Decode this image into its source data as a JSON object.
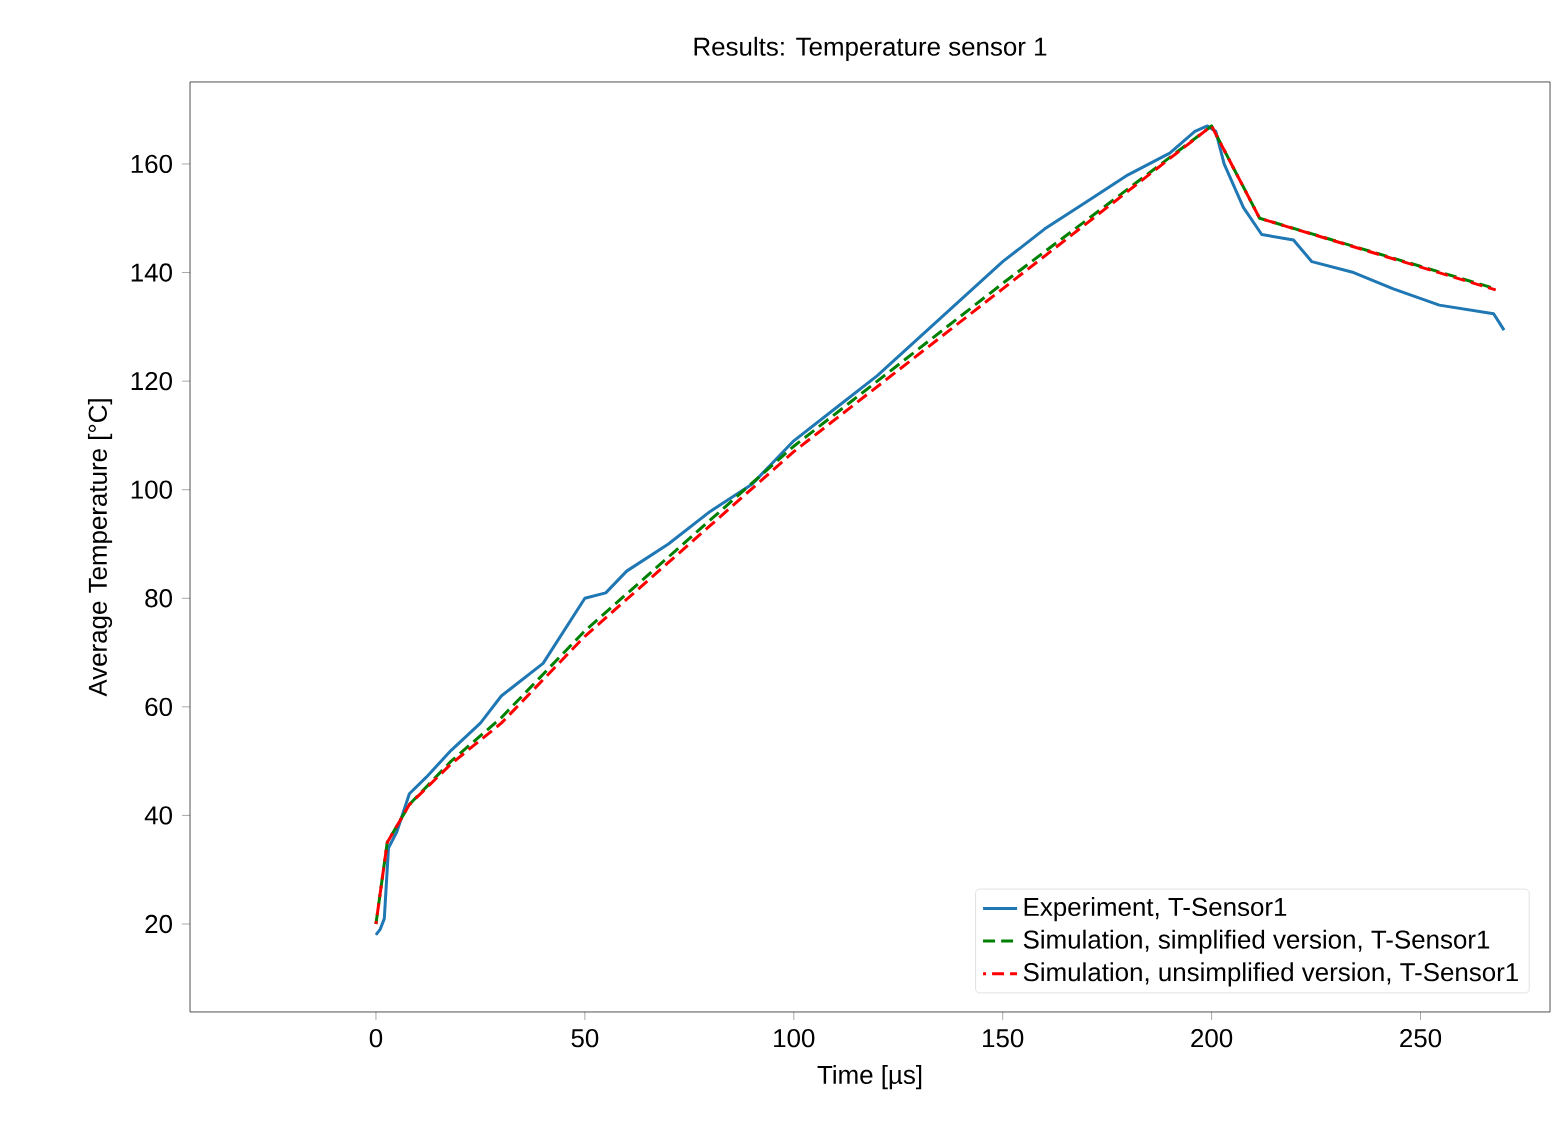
{
  "chart_data": {
    "type": "line",
    "title": "Results: Temperature sensor 1",
    "xlabel": "Time [µs]",
    "ylabel": "Average Temperature [°C]",
    "xlim": [
      -44.5,
      281
    ],
    "ylim": [
      3.8,
      175.1
    ],
    "xticks": [
      0,
      50,
      100,
      150,
      200,
      250
    ],
    "yticks": [
      20,
      40,
      60,
      80,
      100,
      120,
      140,
      160
    ],
    "grid": false,
    "legend": "bottom right",
    "series": [
      {
        "name": "Experiment, T-Sensor1",
        "color": "#1f77b4",
        "line_style": "solid",
        "x": [
          0,
          1,
          2,
          3,
          5,
          8,
          12,
          18,
          25,
          30,
          40,
          50,
          55,
          60,
          70,
          80,
          90,
          100,
          110,
          120,
          130,
          140,
          150,
          160,
          170,
          180,
          190,
          196,
          199,
          201,
          203,
          207.6,
          212,
          219.6,
          224,
          234,
          243.5,
          254.5,
          267.5,
          270
        ],
        "values": [
          18,
          19,
          21,
          34,
          37,
          44,
          47,
          52,
          57,
          62,
          68,
          80,
          81,
          85,
          90,
          96,
          101,
          109,
          115,
          121,
          128,
          135,
          142,
          148,
          153,
          158,
          162,
          166,
          167,
          166,
          160,
          152,
          147,
          146,
          142,
          140,
          137,
          134,
          132.4,
          129.4
        ]
      },
      {
        "name": "Simulation, simplified version, T-Sensor1",
        "color": "#008000",
        "line_style": "dashed",
        "x": [
          0,
          2.7,
          8,
          18,
          30,
          50,
          100,
          150,
          200,
          211.5,
          268
        ],
        "values": [
          20,
          35,
          42,
          50,
          58,
          74,
          108,
          138,
          167,
          150,
          137
        ]
      },
      {
        "name": "Simulation, unsimplified version, T-Sensor1",
        "color": "#ff0000",
        "line_style": "dashed",
        "x": [
          0,
          2.7,
          8,
          18,
          30,
          50,
          100,
          150,
          200,
          211.5,
          268
        ],
        "values": [
          20,
          35,
          42,
          49.5,
          57,
          73,
          107,
          137,
          167,
          150,
          136.8
        ]
      }
    ]
  }
}
